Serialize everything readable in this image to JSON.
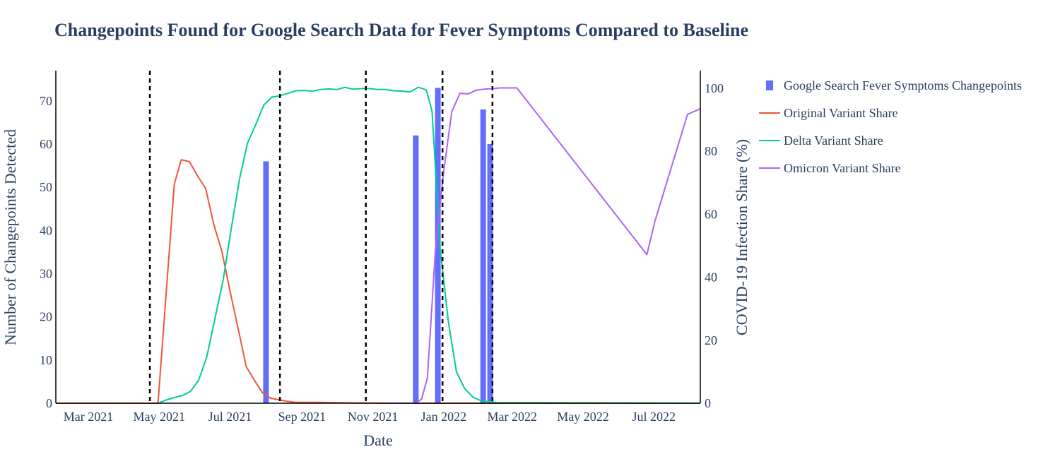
{
  "chart_data": {
    "type": "bar+line",
    "title": "Changepoints Found for Google Search Data for Fever Symptoms Compared to Baseline",
    "xlabel": "Date",
    "ylabel": "Number of Changepoints Detected",
    "y2label": "COVID-19 Infection Share (%)",
    "x_range": [
      "2021-02-01",
      "2022-08-10"
    ],
    "ylim": [
      0,
      77
    ],
    "y2lim": [
      0,
      105.6
    ],
    "x_ticks": [
      {
        "date": "2021-03-01",
        "label": "Mar 2021"
      },
      {
        "date": "2021-05-01",
        "label": "May 2021"
      },
      {
        "date": "2021-07-01",
        "label": "Jul 2021"
      },
      {
        "date": "2021-09-01",
        "label": "Sep 2021"
      },
      {
        "date": "2021-11-01",
        "label": "Nov 2021"
      },
      {
        "date": "2022-01-01",
        "label": "Jan 2022"
      },
      {
        "date": "2022-03-01",
        "label": "Mar 2022"
      },
      {
        "date": "2022-05-01",
        "label": "May 2022"
      },
      {
        "date": "2022-07-01",
        "label": "Jul 2022"
      }
    ],
    "y_ticks": [
      0,
      10,
      20,
      30,
      40,
      50,
      60,
      70
    ],
    "y2_ticks": [
      0,
      20,
      40,
      60,
      80,
      100
    ],
    "changepoint_lines": [
      "2021-04-23",
      "2021-08-13",
      "2021-10-26",
      "2021-12-31",
      "2022-02-12"
    ],
    "legend": [
      {
        "name": "Google Search Fever Symptoms Changepoints",
        "kind": "bar",
        "color": "#636efa"
      },
      {
        "name": "Original Variant Share",
        "kind": "line",
        "color": "#ef553b"
      },
      {
        "name": "Delta Variant Share",
        "kind": "line",
        "color": "#00cc96"
      },
      {
        "name": "Omicron Variant Share",
        "kind": "line",
        "color": "#ab63fa"
      }
    ],
    "bars": [
      {
        "date": "2021-08-01",
        "value": 56
      },
      {
        "date": "2021-12-08",
        "value": 62
      },
      {
        "date": "2021-12-27",
        "value": 73
      },
      {
        "date": "2022-02-04",
        "value": 68
      },
      {
        "date": "2022-02-10",
        "value": 60
      }
    ],
    "series": [
      {
        "name": "Original Variant Share",
        "color": "#ef553b",
        "points": [
          [
            "2021-02-01",
            0
          ],
          [
            "2021-04-30",
            0
          ],
          [
            "2021-05-14",
            69.5
          ],
          [
            "2021-05-20",
            77.3
          ],
          [
            "2021-05-27",
            76.7
          ],
          [
            "2021-06-03",
            72.2
          ],
          [
            "2021-06-10",
            68.2
          ],
          [
            "2021-06-17",
            56.8
          ],
          [
            "2021-06-24",
            48.2
          ],
          [
            "2021-07-01",
            35.6
          ],
          [
            "2021-07-08",
            23.7
          ],
          [
            "2021-07-15",
            11.6
          ],
          [
            "2021-07-22",
            7.3
          ],
          [
            "2021-07-29",
            3.3
          ],
          [
            "2021-08-05",
            1.6
          ],
          [
            "2021-08-12",
            1.1
          ],
          [
            "2021-08-19",
            0.6
          ],
          [
            "2021-08-26",
            0.3
          ],
          [
            "2021-09-15",
            0.3
          ],
          [
            "2021-10-15",
            0.1
          ],
          [
            "2021-11-15",
            0
          ],
          [
            "2022-08-10",
            0
          ]
        ]
      },
      {
        "name": "Delta Variant Share",
        "color": "#00cc96",
        "points": [
          [
            "2021-04-30",
            0
          ],
          [
            "2021-05-07",
            1
          ],
          [
            "2021-05-14",
            1.8
          ],
          [
            "2021-05-21",
            2.4
          ],
          [
            "2021-05-28",
            3.8
          ],
          [
            "2021-06-04",
            7.3
          ],
          [
            "2021-06-11",
            14.7
          ],
          [
            "2021-06-18",
            26.8
          ],
          [
            "2021-06-25",
            38.9
          ],
          [
            "2021-07-02",
            55.2
          ],
          [
            "2021-07-09",
            70.8
          ],
          [
            "2021-07-16",
            82.5
          ],
          [
            "2021-07-23",
            88.3
          ],
          [
            "2021-07-30",
            94.6
          ],
          [
            "2021-08-06",
            97.2
          ],
          [
            "2021-08-13",
            97.6
          ],
          [
            "2021-08-20",
            98.4
          ],
          [
            "2021-08-27",
            99.2
          ],
          [
            "2021-09-03",
            99.3
          ],
          [
            "2021-09-10",
            99.1
          ],
          [
            "2021-09-17",
            99.6
          ],
          [
            "2021-09-24",
            99.8
          ],
          [
            "2021-10-01",
            99.6
          ],
          [
            "2021-10-08",
            100.3
          ],
          [
            "2021-10-15",
            99.7
          ],
          [
            "2021-10-22",
            99.9
          ],
          [
            "2021-10-29",
            99.9
          ],
          [
            "2021-11-05",
            99.6
          ],
          [
            "2021-11-12",
            99.6
          ],
          [
            "2021-11-19",
            99.2
          ],
          [
            "2021-11-26",
            99.1
          ],
          [
            "2021-12-03",
            98.8
          ],
          [
            "2021-12-10",
            100.3
          ],
          [
            "2021-12-17",
            99.5
          ],
          [
            "2021-12-22",
            92.7
          ],
          [
            "2021-12-29",
            49
          ],
          [
            "2022-01-05",
            26
          ],
          [
            "2022-01-12",
            10
          ],
          [
            "2022-01-19",
            4.7
          ],
          [
            "2022-01-26",
            2
          ],
          [
            "2022-02-02",
            0.8
          ],
          [
            "2022-02-16",
            0.2
          ],
          [
            "2022-08-10",
            0
          ]
        ]
      },
      {
        "name": "Omicron Variant Share",
        "color": "#ab63fa",
        "points": [
          [
            "2021-11-15",
            0
          ],
          [
            "2021-12-08",
            0
          ],
          [
            "2021-12-13",
            1.3
          ],
          [
            "2021-12-18",
            8
          ],
          [
            "2021-12-25",
            49
          ],
          [
            "2022-01-01",
            73.5
          ],
          [
            "2022-01-08",
            92.5
          ],
          [
            "2022-01-15",
            98.4
          ],
          [
            "2022-01-22",
            98.2
          ],
          [
            "2022-01-29",
            99.4
          ],
          [
            "2022-02-05",
            99.7
          ],
          [
            "2022-02-19",
            100.1
          ],
          [
            "2022-03-05",
            100.1
          ],
          [
            "2022-06-25",
            47.2
          ],
          [
            "2022-07-02",
            57.9
          ],
          [
            "2022-07-30",
            91.7
          ],
          [
            "2022-08-10",
            93.5
          ]
        ]
      }
    ]
  }
}
